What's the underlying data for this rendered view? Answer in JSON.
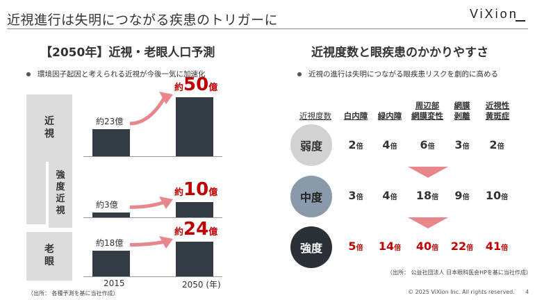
{
  "header": {
    "title": "近視進行は失明につながる疾患のトリガーに",
    "logo": "ViXion"
  },
  "left": {
    "heading": "【2050年】近視・老眼人口予測",
    "bullet": "環境因子起因と考えられる近視が今後一気に加速化",
    "categories": [
      {
        "label": "近\n視",
        "small_label": "約23億",
        "big_pre": "約",
        "big_num": "50",
        "big_post": "億",
        "v2015": 23,
        "v2050": 50
      },
      {
        "label": "強\n度\n近\n視",
        "small_label": "約3億",
        "big_pre": "約",
        "big_num": "10",
        "big_post": "億",
        "v2015": 3,
        "v2050": 10
      },
      {
        "label": "老\n眼",
        "small_label": "約18億",
        "big_pre": "約",
        "big_num": "24",
        "big_post": "億",
        "v2015": 18,
        "v2050": 24
      }
    ],
    "years": [
      "2015",
      "2050 (年)"
    ],
    "source": "（出所： 各種予測を基に当社作成）"
  },
  "right": {
    "heading": "近視度数と眼疾患のかかりやすさ",
    "bullet": "近視の進行は失明につながる眼疾患リスクを劇的に高める",
    "header_label": "近視度数",
    "columns": [
      "白内障",
      "緑内障",
      "周辺部\n網膜変性",
      "網膜\n剥離",
      "近視性\n黄斑症"
    ],
    "rows": [
      {
        "name": "弱度",
        "values": [
          "2",
          "4",
          "6",
          "3",
          "2"
        ],
        "unit": "倍"
      },
      {
        "name": "中度",
        "values": [
          "3",
          "4",
          "18",
          "9",
          "10"
        ],
        "unit": "倍"
      },
      {
        "name": "強度",
        "values": [
          "5",
          "14",
          "40",
          "22",
          "41"
        ],
        "unit": "倍"
      }
    ],
    "source": "（出所： 公益社団法人 日本眼科医会HPを基に当社作成）"
  },
  "footer": {
    "copyright": "© 2025 ViXion Inc. All rights reserved.",
    "page": "4"
  },
  "colors": {
    "bar": "#333c44",
    "accent_red": "#c00000",
    "arrow_pink": "#e9868c"
  }
}
